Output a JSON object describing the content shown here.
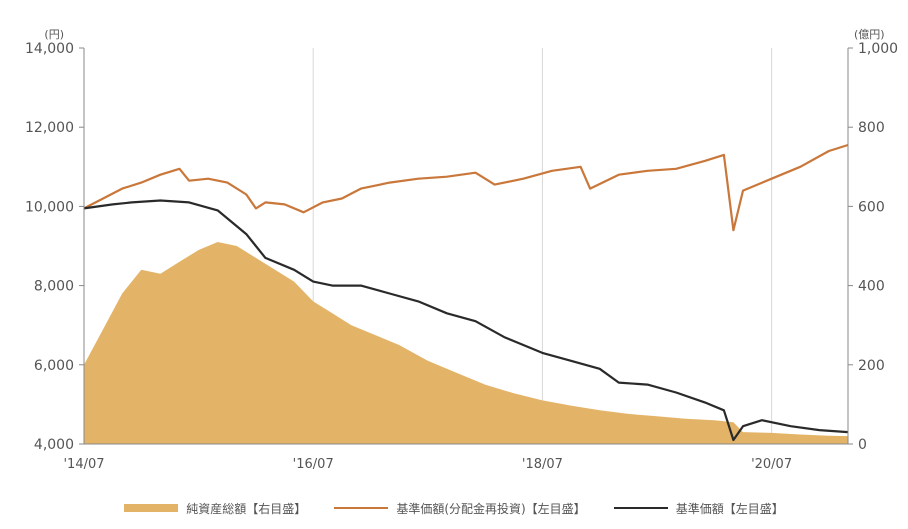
{
  "chart_data": {
    "type": "line",
    "left_axis": {
      "unit": "(円)",
      "ticks": [
        "14,000",
        "12,000",
        "10,000",
        "8,000",
        "6,000",
        "4,000"
      ],
      "ylim": [
        4000,
        14000
      ]
    },
    "right_axis": {
      "unit": "(億円)",
      "ticks": [
        "1,000",
        "800",
        "600",
        "400",
        "200",
        "0"
      ],
      "ylim": [
        0,
        1000
      ]
    },
    "x_axis": {
      "ticks": [
        "'14/07",
        "'16/07",
        "'18/07",
        "'20/07"
      ],
      "range": [
        "2014-07",
        "2021-03"
      ]
    },
    "grid": "vertical lines at x ticks",
    "legend_position": "bottom",
    "series": [
      {
        "name": "純資産総額【右目盛】",
        "kind": "area",
        "axis": "right",
        "color": "#E3B468",
        "points": [
          [
            "2014-07",
            200
          ],
          [
            "2014-09",
            290
          ],
          [
            "2014-11",
            380
          ],
          [
            "2015-01",
            440
          ],
          [
            "2015-03",
            430
          ],
          [
            "2015-05",
            460
          ],
          [
            "2015-07",
            490
          ],
          [
            "2015-09",
            510
          ],
          [
            "2015-11",
            500
          ],
          [
            "2016-01",
            470
          ],
          [
            "2016-03",
            440
          ],
          [
            "2016-05",
            410
          ],
          [
            "2016-07",
            360
          ],
          [
            "2016-09",
            330
          ],
          [
            "2016-11",
            300
          ],
          [
            "2017-01",
            280
          ],
          [
            "2017-04",
            250
          ],
          [
            "2017-07",
            210
          ],
          [
            "2017-10",
            180
          ],
          [
            "2018-01",
            150
          ],
          [
            "2018-04",
            128
          ],
          [
            "2018-07",
            110
          ],
          [
            "2018-10",
            97
          ],
          [
            "2019-01",
            85
          ],
          [
            "2019-04",
            76
          ],
          [
            "2019-07",
            70
          ],
          [
            "2019-10",
            64
          ],
          [
            "2020-01",
            60
          ],
          [
            "2020-03",
            55
          ],
          [
            "2020-04",
            30
          ],
          [
            "2020-07",
            28
          ],
          [
            "2020-10",
            24
          ],
          [
            "2021-01",
            21
          ],
          [
            "2021-03",
            20
          ]
        ]
      },
      {
        "name": "基準価額(分配金再投資)【左目盛】",
        "kind": "line",
        "axis": "left",
        "color": "#C9773A",
        "points": [
          [
            "2014-07",
            9950
          ],
          [
            "2014-09",
            10200
          ],
          [
            "2014-11",
            10450
          ],
          [
            "2015-01",
            10600
          ],
          [
            "2015-03",
            10800
          ],
          [
            "2015-05",
            10950
          ],
          [
            "2015-06",
            10650
          ],
          [
            "2015-08",
            10700
          ],
          [
            "2015-10",
            10600
          ],
          [
            "2015-12",
            10300
          ],
          [
            "2016-01",
            9950
          ],
          [
            "2016-02",
            10100
          ],
          [
            "2016-04",
            10050
          ],
          [
            "2016-06",
            9850
          ],
          [
            "2016-08",
            10100
          ],
          [
            "2016-10",
            10200
          ],
          [
            "2016-12",
            10450
          ],
          [
            "2017-03",
            10600
          ],
          [
            "2017-06",
            10700
          ],
          [
            "2017-09",
            10750
          ],
          [
            "2017-12",
            10850
          ],
          [
            "2018-02",
            10550
          ],
          [
            "2018-05",
            10700
          ],
          [
            "2018-08",
            10900
          ],
          [
            "2018-11",
            11000
          ],
          [
            "2018-12",
            10450
          ],
          [
            "2019-03",
            10800
          ],
          [
            "2019-06",
            10900
          ],
          [
            "2019-09",
            10950
          ],
          [
            "2019-12",
            11150
          ],
          [
            "2020-02",
            11300
          ],
          [
            "2020-03",
            9400
          ],
          [
            "2020-04",
            10400
          ],
          [
            "2020-07",
            10700
          ],
          [
            "2020-10",
            11000
          ],
          [
            "2021-01",
            11400
          ],
          [
            "2021-03",
            11550
          ]
        ]
      },
      {
        "name": "基準価額【左目盛】",
        "kind": "line",
        "axis": "left",
        "color": "#2A2A2A",
        "points": [
          [
            "2014-07",
            9950
          ],
          [
            "2014-10",
            10050
          ],
          [
            "2014-12",
            10100
          ],
          [
            "2015-03",
            10150
          ],
          [
            "2015-06",
            10100
          ],
          [
            "2015-09",
            9900
          ],
          [
            "2015-12",
            9300
          ],
          [
            "2016-02",
            8700
          ],
          [
            "2016-05",
            8400
          ],
          [
            "2016-07",
            8100
          ],
          [
            "2016-09",
            8000
          ],
          [
            "2016-12",
            8000
          ],
          [
            "2017-03",
            7800
          ],
          [
            "2017-06",
            7600
          ],
          [
            "2017-09",
            7300
          ],
          [
            "2017-12",
            7100
          ],
          [
            "2018-03",
            6700
          ],
          [
            "2018-07",
            6300
          ],
          [
            "2018-10",
            6100
          ],
          [
            "2019-01",
            5900
          ],
          [
            "2019-03",
            5550
          ],
          [
            "2019-06",
            5500
          ],
          [
            "2019-09",
            5300
          ],
          [
            "2019-12",
            5050
          ],
          [
            "2020-02",
            4850
          ],
          [
            "2020-03",
            4100
          ],
          [
            "2020-04",
            4450
          ],
          [
            "2020-06",
            4600
          ],
          [
            "2020-09",
            4450
          ],
          [
            "2020-12",
            4350
          ],
          [
            "2021-03",
            4300
          ]
        ]
      }
    ]
  }
}
